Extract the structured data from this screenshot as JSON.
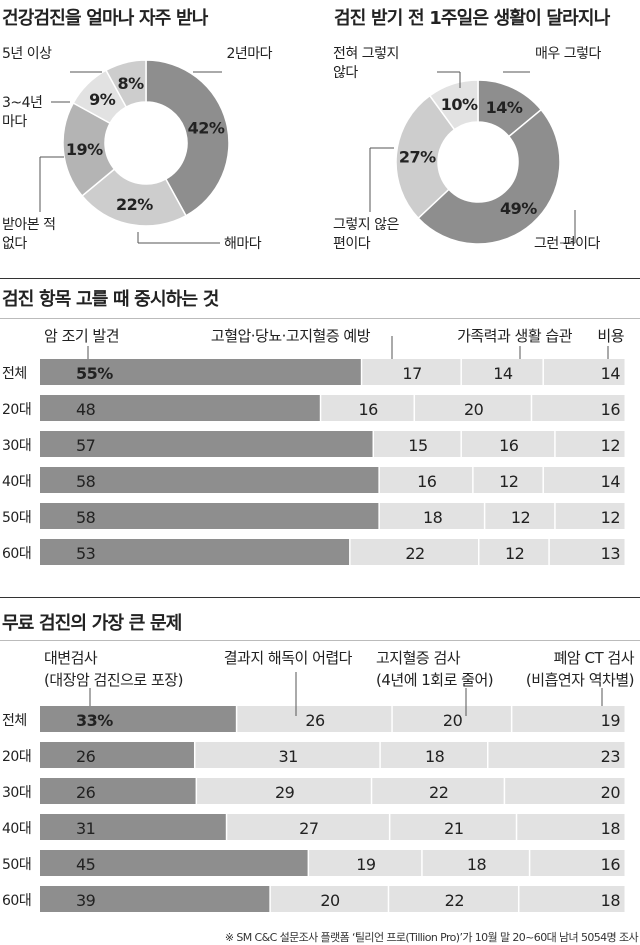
{
  "titles": {
    "frequency": "건강검진을 얼마나 자주 받나",
    "lifestyle": "검진 받기 전 1주일은 생활이 달라지나",
    "criteria": "검진 항목 고를 때 중시하는 것",
    "problems": "무료 검진의 가장 큰 문제"
  },
  "footnote": "※ SM C&C 설문조사 플랫폼 ‘틸리언 프로(Tillion Pro)’가 10월 말 20~60대 남녀 5054명 조사",
  "colors": {
    "dark": "#8e8e8e",
    "mid": "#b4b4b4",
    "light": "#cdcdcd",
    "lighter": "#e2e2e2",
    "line": "#555555"
  },
  "chart_data": [
    {
      "type": "pie",
      "title": "건강검진을 얼마나 자주 받나",
      "slices": [
        {
          "label": "2년마다",
          "value": 42,
          "display": "42%"
        },
        {
          "label": "해마다",
          "value": 22,
          "display": "22%"
        },
        {
          "label": "받아본 적 없다",
          "value": 19,
          "display": "19%"
        },
        {
          "label": "3~4년 마다",
          "value": 9,
          "display": "9%"
        },
        {
          "label": "5년 이상",
          "value": 8,
          "display": "8%"
        }
      ]
    },
    {
      "type": "pie",
      "title": "검진 받기 전 1주일은 생활이 달라지나",
      "slices": [
        {
          "label": "매우 그렇다",
          "value": 14,
          "display": "14%"
        },
        {
          "label": "그런 편이다",
          "value": 49,
          "display": "49%"
        },
        {
          "label": "그렇지 않은 편이다",
          "value": 27,
          "display": "27%"
        },
        {
          "label": "전혀 그렇지 않다",
          "value": 10,
          "display": "10%"
        }
      ]
    },
    {
      "type": "bar",
      "title": "검진 항목 고를 때 중시하는 것",
      "stacked": true,
      "orientation": "horizontal",
      "categories": [
        "전체",
        "20대",
        "30대",
        "40대",
        "50대",
        "60대"
      ],
      "series": [
        {
          "name": "암 조기 발견",
          "values": [
            55,
            48,
            57,
            58,
            58,
            53
          ]
        },
        {
          "name": "고혈압·당뇨·고지혈증 예방",
          "values": [
            17,
            16,
            15,
            16,
            18,
            22
          ]
        },
        {
          "name": "가족력과 생활 습관",
          "values": [
            14,
            20,
            16,
            12,
            12,
            12
          ]
        },
        {
          "name": "비용",
          "values": [
            14,
            16,
            12,
            14,
            12,
            13
          ]
        }
      ],
      "first_value_suffix": "%"
    },
    {
      "type": "bar",
      "title": "무료 검진의 가장 큰 문제",
      "stacked": true,
      "orientation": "horizontal",
      "categories": [
        "전체",
        "20대",
        "30대",
        "40대",
        "50대",
        "60대"
      ],
      "series": [
        {
          "name": "대변검사 (대장암 검진으로 포장)",
          "label_lines": [
            "대변검사",
            "(대장암 검진으로 포장)"
          ],
          "values": [
            33,
            26,
            26,
            31,
            45,
            39
          ]
        },
        {
          "name": "결과지 해독이 어렵다",
          "label_lines": [
            "결과지 해독이 어렵다"
          ],
          "values": [
            26,
            31,
            29,
            27,
            19,
            20
          ]
        },
        {
          "name": "고지혈증 검사 (4년에 1회로 줄어)",
          "label_lines": [
            "고지혈증 검사",
            "(4년에 1회로 줄어)"
          ],
          "values": [
            20,
            18,
            22,
            21,
            18,
            22
          ]
        },
        {
          "name": "폐암 CT 검사 (비흡연자 역차별)",
          "label_lines": [
            "폐암 CT 검사",
            "(비흡연자 역차별)"
          ],
          "values": [
            19,
            23,
            20,
            18,
            16,
            18
          ]
        }
      ],
      "first_value_suffix": "%"
    }
  ]
}
